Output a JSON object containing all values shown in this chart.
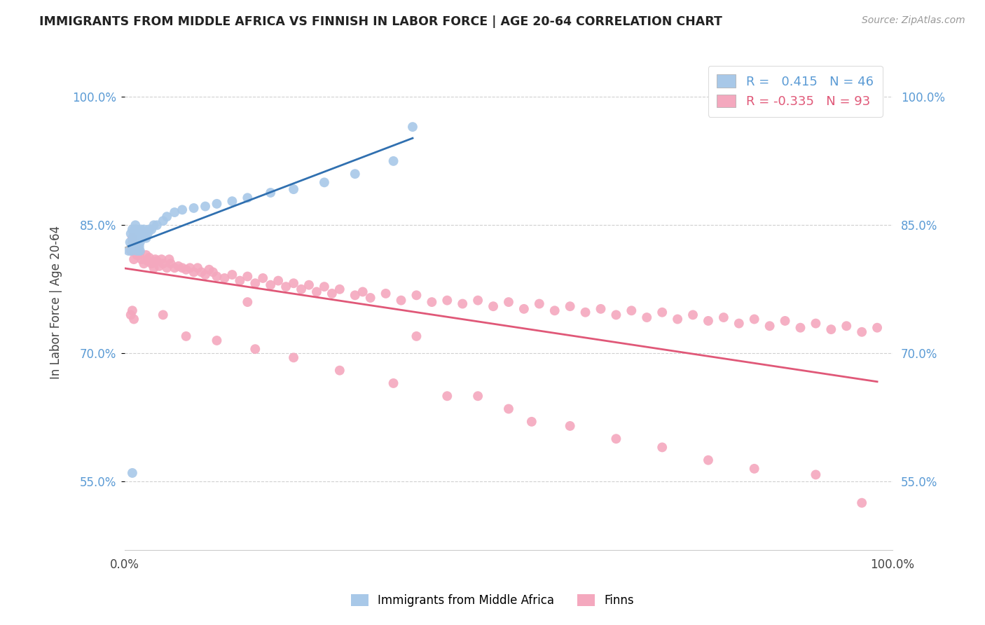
{
  "title": "IMMIGRANTS FROM MIDDLE AFRICA VS FINNISH IN LABOR FORCE | AGE 20-64 CORRELATION CHART",
  "source": "Source: ZipAtlas.com",
  "ylabel": "In Labor Force | Age 20-64",
  "xlim": [
    0.0,
    1.0
  ],
  "ylim": [
    0.47,
    1.05
  ],
  "blue_R": 0.415,
  "blue_N": 46,
  "pink_R": -0.335,
  "pink_N": 93,
  "blue_color": "#a8c8e8",
  "pink_color": "#f4a8be",
  "blue_line_color": "#3070b0",
  "pink_line_color": "#e05878",
  "dash_color": "#bbbbbb",
  "background_color": "#ffffff",
  "grid_color": "#d0d0d0",
  "tick_color": "#5b9bd5",
  "y_ticks": [
    0.55,
    0.7,
    0.85,
    1.0
  ],
  "y_tick_labels": [
    "55.0%",
    "70.0%",
    "85.0%",
    "100.0%"
  ],
  "x_ticks": [
    0.0,
    1.0
  ],
  "x_tick_labels": [
    "0.0%",
    "100.0%"
  ],
  "blue_x": [
    0.005,
    0.007,
    0.008,
    0.009,
    0.01,
    0.01,
    0.011,
    0.012,
    0.013,
    0.013,
    0.014,
    0.015,
    0.015,
    0.016,
    0.017,
    0.018,
    0.019,
    0.02,
    0.02,
    0.021,
    0.022,
    0.023,
    0.025,
    0.026,
    0.028,
    0.03,
    0.032,
    0.035,
    0.038,
    0.042,
    0.05,
    0.055,
    0.065,
    0.075,
    0.09,
    0.105,
    0.12,
    0.14,
    0.16,
    0.19,
    0.22,
    0.26,
    0.3,
    0.35,
    0.375,
    0.01
  ],
  "blue_y": [
    0.82,
    0.83,
    0.84,
    0.82,
    0.83,
    0.845,
    0.835,
    0.84,
    0.825,
    0.845,
    0.85,
    0.83,
    0.845,
    0.82,
    0.84,
    0.835,
    0.825,
    0.83,
    0.82,
    0.845,
    0.84,
    0.835,
    0.845,
    0.84,
    0.835,
    0.84,
    0.845,
    0.845,
    0.85,
    0.85,
    0.855,
    0.86,
    0.865,
    0.868,
    0.87,
    0.872,
    0.875,
    0.878,
    0.882,
    0.888,
    0.892,
    0.9,
    0.91,
    0.925,
    0.965,
    0.56
  ],
  "pink_x": [
    0.008,
    0.01,
    0.012,
    0.013,
    0.015,
    0.016,
    0.017,
    0.018,
    0.019,
    0.02,
    0.022,
    0.025,
    0.028,
    0.03,
    0.032,
    0.035,
    0.038,
    0.04,
    0.042,
    0.045,
    0.048,
    0.05,
    0.055,
    0.058,
    0.06,
    0.065,
    0.07,
    0.075,
    0.08,
    0.085,
    0.09,
    0.095,
    0.1,
    0.105,
    0.11,
    0.115,
    0.12,
    0.13,
    0.14,
    0.15,
    0.16,
    0.17,
    0.18,
    0.19,
    0.2,
    0.21,
    0.22,
    0.23,
    0.24,
    0.25,
    0.26,
    0.27,
    0.28,
    0.3,
    0.31,
    0.32,
    0.34,
    0.36,
    0.38,
    0.4,
    0.42,
    0.44,
    0.46,
    0.48,
    0.5,
    0.52,
    0.54,
    0.56,
    0.58,
    0.6,
    0.62,
    0.64,
    0.66,
    0.68,
    0.7,
    0.72,
    0.74,
    0.76,
    0.78,
    0.8,
    0.82,
    0.84,
    0.86,
    0.88,
    0.9,
    0.92,
    0.94,
    0.96,
    0.98,
    0.16,
    0.38,
    0.46,
    0.53
  ],
  "pink_y": [
    0.82,
    0.835,
    0.81,
    0.82,
    0.825,
    0.815,
    0.818,
    0.82,
    0.815,
    0.818,
    0.81,
    0.805,
    0.815,
    0.808,
    0.812,
    0.805,
    0.8,
    0.81,
    0.808,
    0.802,
    0.81,
    0.805,
    0.8,
    0.81,
    0.805,
    0.8,
    0.802,
    0.8,
    0.798,
    0.8,
    0.795,
    0.8,
    0.795,
    0.792,
    0.798,
    0.795,
    0.79,
    0.788,
    0.792,
    0.785,
    0.79,
    0.782,
    0.788,
    0.78,
    0.785,
    0.778,
    0.782,
    0.775,
    0.78,
    0.772,
    0.778,
    0.77,
    0.775,
    0.768,
    0.772,
    0.765,
    0.77,
    0.762,
    0.768,
    0.76,
    0.762,
    0.758,
    0.762,
    0.755,
    0.76,
    0.752,
    0.758,
    0.75,
    0.755,
    0.748,
    0.752,
    0.745,
    0.75,
    0.742,
    0.748,
    0.74,
    0.745,
    0.738,
    0.742,
    0.735,
    0.74,
    0.732,
    0.738,
    0.73,
    0.735,
    0.728,
    0.732,
    0.725,
    0.73,
    0.76,
    0.72,
    0.65,
    0.62
  ],
  "pink_outliers_x": [
    0.008,
    0.01,
    0.012,
    0.05,
    0.08,
    0.12,
    0.17,
    0.22,
    0.28,
    0.35,
    0.42,
    0.5,
    0.58,
    0.64,
    0.7,
    0.76,
    0.82,
    0.9,
    0.96
  ],
  "pink_outliers_y": [
    0.745,
    0.75,
    0.74,
    0.745,
    0.72,
    0.715,
    0.705,
    0.695,
    0.68,
    0.665,
    0.65,
    0.635,
    0.615,
    0.6,
    0.59,
    0.575,
    0.565,
    0.558,
    0.525
  ]
}
